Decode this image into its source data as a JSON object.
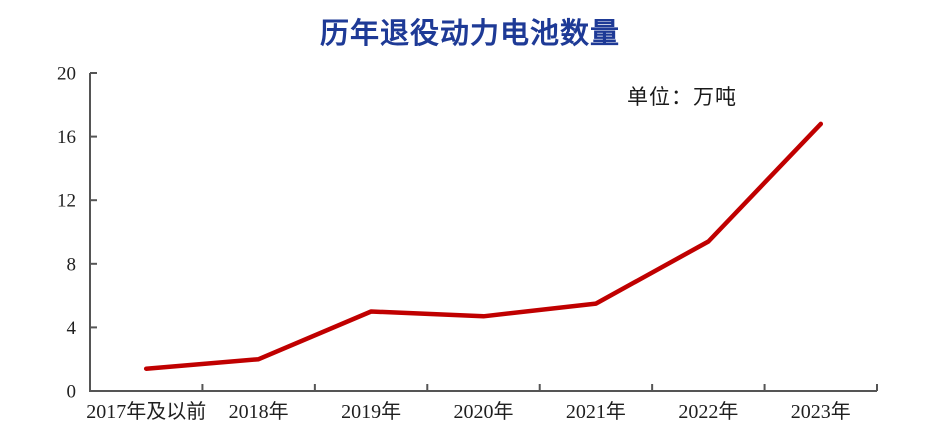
{
  "unit_label": "单位：万吨",
  "colors": {
    "title": "#1e3a96",
    "line": "#c00000",
    "axis": "#555555",
    "label": "#1f1f1f"
  },
  "chart_data": {
    "type": "line",
    "title": "历年退役动力电池数量",
    "unit": "万吨",
    "categories": [
      "2017年及以前",
      "2018年",
      "2019年",
      "2020年",
      "2021年",
      "2022年",
      "2023年"
    ],
    "values": [
      1.4,
      2.0,
      5.0,
      4.7,
      5.5,
      9.4,
      16.8
    ],
    "xlabel": "",
    "ylabel": "",
    "ylim": [
      0,
      20
    ],
    "yticks": [
      0,
      4,
      8,
      12,
      16,
      20
    ],
    "grid": false,
    "legend": "none"
  }
}
